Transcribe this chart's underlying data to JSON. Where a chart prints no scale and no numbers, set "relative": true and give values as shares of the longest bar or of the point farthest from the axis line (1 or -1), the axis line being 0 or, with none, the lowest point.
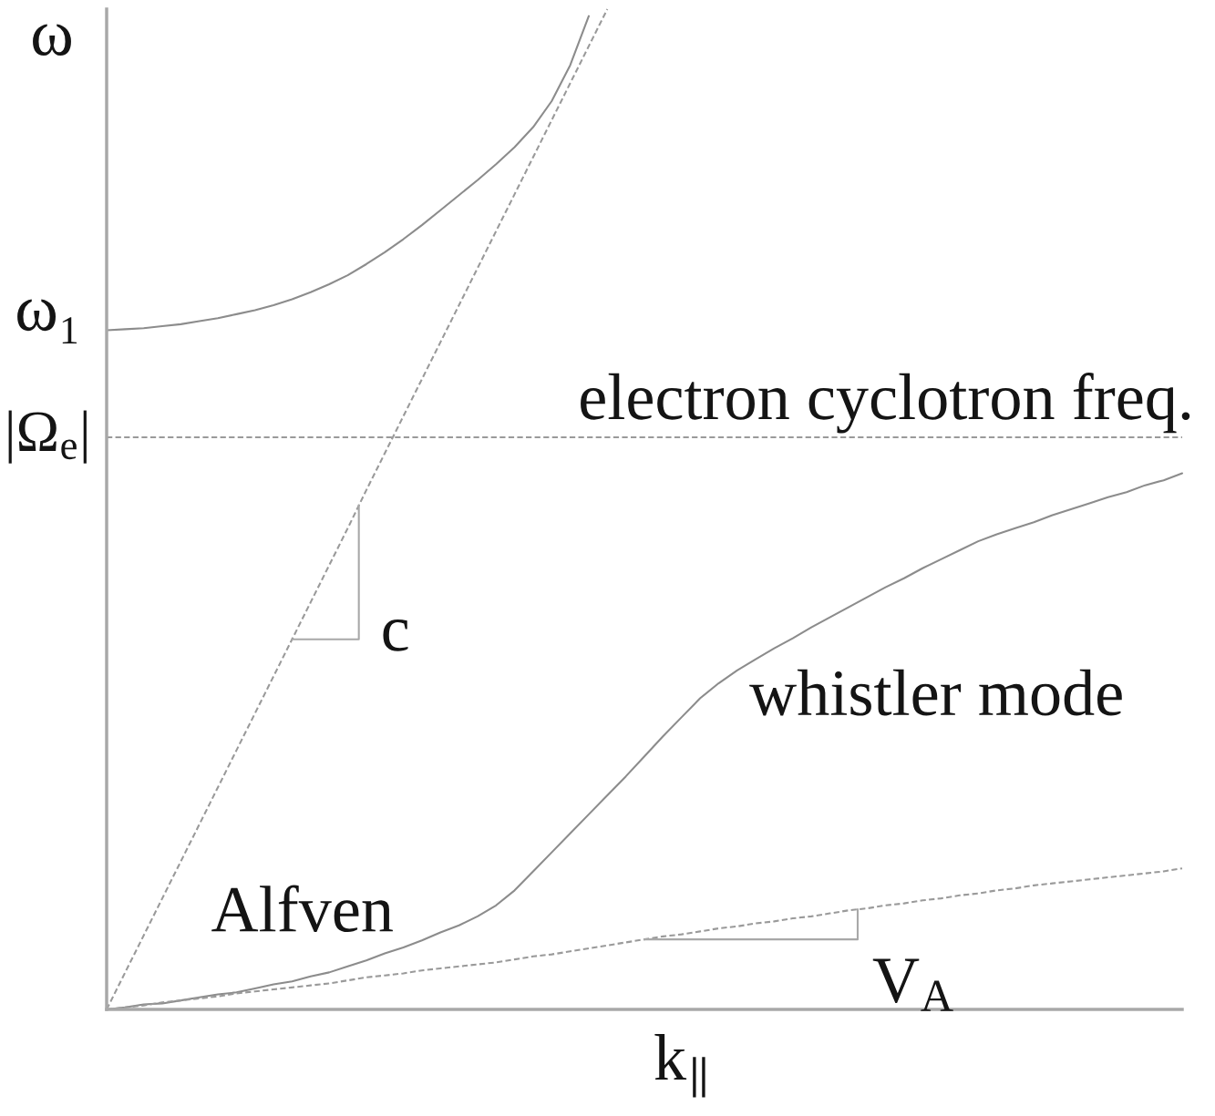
{
  "chart_data": {
    "type": "line",
    "relative": true,
    "ylabel": "ω",
    "xlabel": "k$_{∥}$",
    "categories": [
      null,
      null,
      null,
      null,
      null,
      null,
      null,
      null,
      null,
      null,
      null,
      null,
      null,
      null,
      null,
      null,
      null,
      null,
      null,
      null,
      null,
      null,
      null,
      null,
      null,
      null,
      null,
      null,
      null,
      null,
      null,
      null,
      null,
      null,
      null,
      null,
      null,
      null,
      null,
      null,
      null,
      null,
      null,
      null,
      null,
      null,
      null,
      null,
      null,
      null,
      null,
      null,
      null,
      null,
      null,
      null,
      null,
      null,
      null
    ],
    "series": [
      {
        "color": "#9a9a9a",
        "line_style": "dashed",
        "values": [
          0,
          0.037,
          0.074,
          0.111,
          0.148,
          0.185,
          0.222,
          0.259,
          0.296,
          0.333,
          0.37,
          0.407,
          0.444,
          0.481,
          0.519,
          0.556,
          0.593,
          0.63,
          0.667,
          0.704,
          0.741,
          0.778,
          0.815,
          0.852,
          0.889,
          0.926,
          0.963,
          1.0,
          null,
          null,
          null,
          null,
          null,
          null,
          null,
          null,
          null,
          null,
          null,
          null,
          null,
          null,
          null,
          null,
          null,
          null,
          null,
          null,
          null,
          null,
          null,
          null,
          null,
          null,
          null,
          null,
          null,
          null,
          null
        ]
      },
      {
        "color": "#8c8c8c",
        "line_style": "solid",
        "values": [
          0.679,
          0.68,
          0.681,
          0.683,
          0.685,
          0.688,
          0.691,
          0.695,
          0.699,
          0.704,
          0.71,
          0.717,
          0.725,
          0.734,
          0.745,
          0.757,
          0.77,
          0.784,
          0.799,
          0.814,
          0.829,
          0.845,
          0.862,
          0.882,
          0.908,
          0.944,
          0.993,
          null,
          null,
          null,
          null,
          null,
          null,
          null,
          null,
          null,
          null,
          null,
          null,
          null,
          null,
          null,
          null,
          null,
          null,
          null,
          null,
          null,
          null,
          null,
          null,
          null,
          null,
          null,
          null,
          null,
          null,
          null,
          null
        ]
      },
      {
        "name": "whistler mode",
        "color": "#8c8c8c",
        "line_style": "solid",
        "values": [
          0,
          0.002,
          0.005,
          0.006,
          0.009,
          0.012,
          0.015,
          0.017,
          0.021,
          0.025,
          0.028,
          0.033,
          0.037,
          0.043,
          0.049,
          0.056,
          0.062,
          0.069,
          0.077,
          0.084,
          0.093,
          0.104,
          0.119,
          0.138,
          0.157,
          0.176,
          0.195,
          0.214,
          0.233,
          0.253,
          0.273,
          0.292,
          0.311,
          0.326,
          0.339,
          0.35,
          0.361,
          0.371,
          0.382,
          0.392,
          0.402,
          0.412,
          0.422,
          0.431,
          0.441,
          0.45,
          0.459,
          0.468,
          0.475,
          0.481,
          0.487,
          0.494,
          0.5,
          0.506,
          0.512,
          0.517,
          0.524,
          0.529,
          0.536
        ]
      },
      {
        "color": "#9a9a9a",
        "line_style": "dashed",
        "values": [
          0,
          0.002,
          0.004,
          0.007,
          0.009,
          0.011,
          0.013,
          0.016,
          0.018,
          0.02,
          0.022,
          0.024,
          0.026,
          0.029,
          0.032,
          0.034,
          0.036,
          0.039,
          0.041,
          0.043,
          0.045,
          0.047,
          0.05,
          0.053,
          0.055,
          0.058,
          0.061,
          0.064,
          0.067,
          0.07,
          0.073,
          0.075,
          0.078,
          0.081,
          0.083,
          0.086,
          0.088,
          0.091,
          0.093,
          0.096,
          0.099,
          0.101,
          0.104,
          0.106,
          0.109,
          0.111,
          0.114,
          0.116,
          0.119,
          0.121,
          0.124,
          0.126,
          0.128,
          0.13,
          0.132,
          0.134,
          0.136,
          0.138,
          0.141
        ]
      }
    ],
    "ref_lines": [
      {
        "axis": "y",
        "value": 0.572,
        "label": "electron cyclotron freq.",
        "color": "#9a9a9a",
        "line_style": "dashed"
      }
    ],
    "annotations": [
      "ω₁",
      "|Ω$_{e}$|",
      "c",
      "V$_{A}$",
      "Alfven"
    ]
  }
}
